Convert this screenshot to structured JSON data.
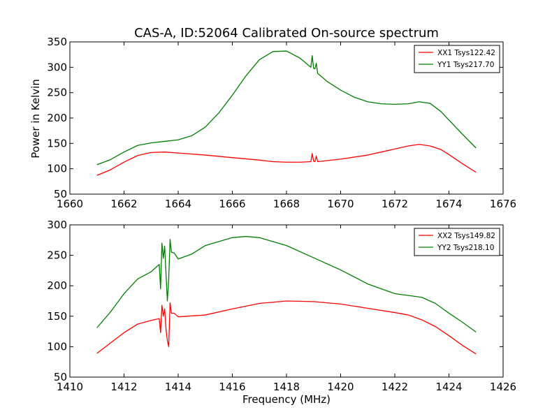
{
  "title": "CAS-A, ID:52064 Calibrated On-source spectrum",
  "ylabel": "Power in Kelvin",
  "xlabel": "Frequency (MHz)",
  "chart_data": [
    {
      "type": "line",
      "xlim": [
        1660,
        1676
      ],
      "ylim": [
        50,
        350
      ],
      "xticks": [
        1660,
        1662,
        1664,
        1666,
        1668,
        1670,
        1672,
        1674,
        1676
      ],
      "yticks": [
        50,
        100,
        150,
        200,
        250,
        300,
        350
      ],
      "legend": "top-right",
      "grid": false,
      "series": [
        {
          "name": "XX1 Tsys122.42",
          "color": "#ff0000",
          "points": [
            [
              1661.0,
              87
            ],
            [
              1661.5,
              98
            ],
            [
              1662.0,
              113
            ],
            [
              1662.5,
              126
            ],
            [
              1663.0,
              132
            ],
            [
              1663.5,
              133
            ],
            [
              1664.0,
              131
            ],
            [
              1665.0,
              127
            ],
            [
              1666.0,
              122
            ],
            [
              1667.0,
              117
            ],
            [
              1667.5,
              114
            ],
            [
              1668.0,
              113
            ],
            [
              1668.5,
              113
            ],
            [
              1668.9,
              114
            ],
            [
              1668.95,
              130
            ],
            [
              1669.0,
              115
            ],
            [
              1669.05,
              114
            ],
            [
              1669.1,
              125
            ],
            [
              1669.15,
              114
            ],
            [
              1669.5,
              116
            ],
            [
              1670.0,
              119
            ],
            [
              1670.5,
              123
            ],
            [
              1671.0,
              127
            ],
            [
              1671.5,
              133
            ],
            [
              1672.0,
              139
            ],
            [
              1672.5,
              145
            ],
            [
              1672.9,
              148
            ],
            [
              1673.3,
              145
            ],
            [
              1673.7,
              138
            ],
            [
              1674.0,
              128
            ],
            [
              1674.5,
              110
            ],
            [
              1675.0,
              93
            ]
          ]
        },
        {
          "name": "YY1 Tsys217.70",
          "color": "#008000",
          "points": [
            [
              1661.0,
              108
            ],
            [
              1661.5,
              118
            ],
            [
              1662.0,
              133
            ],
            [
              1662.5,
              146
            ],
            [
              1663.0,
              151
            ],
            [
              1663.5,
              154
            ],
            [
              1664.0,
              157
            ],
            [
              1664.5,
              165
            ],
            [
              1665.0,
              182
            ],
            [
              1665.5,
              210
            ],
            [
              1666.0,
              245
            ],
            [
              1666.5,
              283
            ],
            [
              1667.0,
              315
            ],
            [
              1667.5,
              331
            ],
            [
              1668.0,
              332
            ],
            [
              1668.5,
              318
            ],
            [
              1668.9,
              300
            ],
            [
              1668.95,
              323
            ],
            [
              1669.0,
              298
            ],
            [
              1669.05,
              297
            ],
            [
              1669.1,
              308
            ],
            [
              1669.15,
              288
            ],
            [
              1669.5,
              272
            ],
            [
              1670.0,
              255
            ],
            [
              1670.5,
              241
            ],
            [
              1671.0,
              232
            ],
            [
              1671.5,
              228
            ],
            [
              1672.0,
              227
            ],
            [
              1672.5,
              228
            ],
            [
              1672.9,
              232
            ],
            [
              1673.3,
              229
            ],
            [
              1673.7,
              213
            ],
            [
              1674.0,
              196
            ],
            [
              1674.5,
              168
            ],
            [
              1675.0,
              141
            ]
          ]
        }
      ]
    },
    {
      "type": "line",
      "xlim": [
        1410,
        1426
      ],
      "ylim": [
        50,
        300
      ],
      "xticks": [
        1410,
        1412,
        1414,
        1416,
        1418,
        1420,
        1422,
        1424,
        1426
      ],
      "yticks": [
        50,
        100,
        150,
        200,
        250,
        300
      ],
      "legend": "top-right",
      "grid": false,
      "series": [
        {
          "name": "XX2 Tsys149.82",
          "color": "#ff0000",
          "points": [
            [
              1411.0,
              89
            ],
            [
              1411.5,
              106
            ],
            [
              1412.0,
              123
            ],
            [
              1412.5,
              137
            ],
            [
              1413.0,
              143
            ],
            [
              1413.3,
              146
            ],
            [
              1413.35,
              123
            ],
            [
              1413.4,
              168
            ],
            [
              1413.45,
              150
            ],
            [
              1413.5,
              162
            ],
            [
              1413.55,
              129
            ],
            [
              1413.6,
              110
            ],
            [
              1413.65,
              100
            ],
            [
              1413.7,
              172
            ],
            [
              1413.75,
              155
            ],
            [
              1413.85,
              155
            ],
            [
              1414.0,
              149
            ],
            [
              1415.0,
              152
            ],
            [
              1416.0,
              162
            ],
            [
              1417.0,
              171
            ],
            [
              1418.0,
              175
            ],
            [
              1419.0,
              174
            ],
            [
              1420.0,
              170
            ],
            [
              1421.0,
              163
            ],
            [
              1422.0,
              156
            ],
            [
              1422.5,
              152
            ],
            [
              1423.0,
              144
            ],
            [
              1423.5,
              133
            ],
            [
              1424.0,
              118
            ],
            [
              1424.5,
              102
            ],
            [
              1425.0,
              88
            ]
          ]
        },
        {
          "name": "YY2 Tsys218.10",
          "color": "#008000",
          "points": [
            [
              1411.0,
              131
            ],
            [
              1411.5,
              157
            ],
            [
              1412.0,
              187
            ],
            [
              1412.5,
              211
            ],
            [
              1413.0,
              223
            ],
            [
              1413.3,
              235
            ],
            [
              1413.35,
              195
            ],
            [
              1413.4,
              270
            ],
            [
              1413.45,
              245
            ],
            [
              1413.5,
              265
            ],
            [
              1413.55,
              220
            ],
            [
              1413.6,
              175
            ],
            [
              1413.65,
              210
            ],
            [
              1413.7,
              276
            ],
            [
              1413.75,
              255
            ],
            [
              1413.85,
              254
            ],
            [
              1414.0,
              244
            ],
            [
              1414.5,
              252
            ],
            [
              1415.0,
              266
            ],
            [
              1416.0,
              279
            ],
            [
              1416.5,
              281
            ],
            [
              1417.0,
              279
            ],
            [
              1418.0,
              266
            ],
            [
              1419.0,
              246
            ],
            [
              1420.0,
              226
            ],
            [
              1421.0,
              203
            ],
            [
              1422.0,
              187
            ],
            [
              1423.0,
              181
            ],
            [
              1423.5,
              171
            ],
            [
              1424.0,
              155
            ],
            [
              1424.5,
              140
            ],
            [
              1425.0,
              124
            ]
          ]
        }
      ]
    }
  ]
}
